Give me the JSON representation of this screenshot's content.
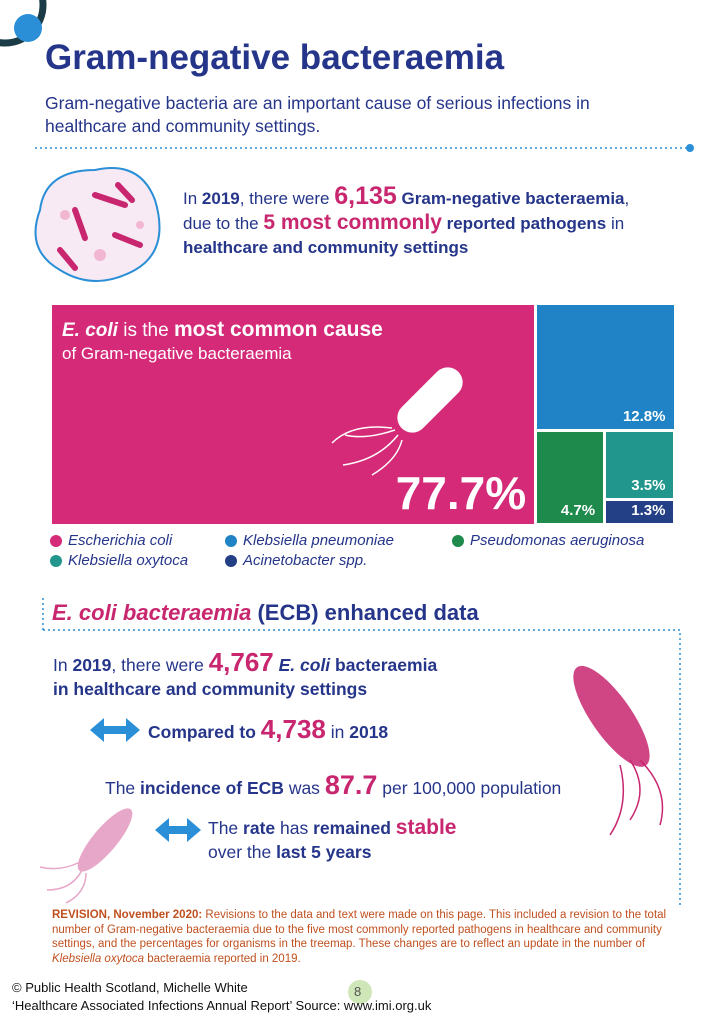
{
  "header": {
    "title": "Gram-negative bacteraemia",
    "subtitle": "Gram-negative bacteria are an important cause of serious infections in healthcare and community settings."
  },
  "summary": {
    "parts": [
      "In ",
      "2019",
      ", there were ",
      "6,135",
      " Gram-negative bacteraemia",
      ", due to the ",
      "5 most commonly",
      " reported pathogens",
      " in ",
      "healthcare and community settings"
    ]
  },
  "treemap": {
    "callout": [
      "E. coli",
      " is the ",
      "most common cause",
      "of Gram-negative bacteraemia"
    ],
    "items": [
      {
        "name": "Escherichia coli",
        "value": 77.7,
        "label": "77.7%",
        "color": "#d42a78"
      },
      {
        "name": "Klebsiella pneumoniae",
        "value": 12.8,
        "label": "12.8%",
        "color": "#1f83c6"
      },
      {
        "name": "Pseudomonas aeruginosa",
        "value": 4.7,
        "label": "4.7%",
        "color": "#1e8a4c"
      },
      {
        "name": "Klebsiella oxytoca",
        "value": 3.5,
        "label": "3.5%",
        "color": "#20968c"
      },
      {
        "name": "Acinetobacter spp.",
        "value": 1.3,
        "label": "1.3%",
        "color": "#233f86"
      }
    ]
  },
  "ecb": {
    "heading": [
      "E. coli bacteraemia",
      " (ECB) enhanced data"
    ],
    "total": [
      "In ",
      "2019",
      ", there were ",
      "4,767",
      " E. coli",
      " bacteraemia",
      "in healthcare and community settings"
    ],
    "compared": [
      "Compared to ",
      "4,738",
      " in ",
      "2018"
    ],
    "incidence": [
      "The ",
      "incidence of ECB",
      " was ",
      "87.7",
      " per 100,000 population"
    ],
    "rate": [
      "The ",
      "rate",
      " has ",
      "remained ",
      "stable",
      "over the ",
      "last 5 years"
    ]
  },
  "revision": {
    "lead": "REVISION, November 2020:",
    "text": " Revisions to the data and text were made on this page. This included a revision to the total number of Gram-negative bacteraemia due to the five most commonly reported pathogens in healthcare and community settings, and the percentages for organisms in the treemap. These changes are to reflect an update in the number of ",
    "species": "Klebsiella oxytoca",
    "end": " bacteraemia reported in 2019."
  },
  "footer": {
    "credit": "© Public Health Scotland, Michelle White",
    "page": "8",
    "source": "‘Healthcare Associated Infections Annual Report’ Source: www.imi.org.uk"
  }
}
